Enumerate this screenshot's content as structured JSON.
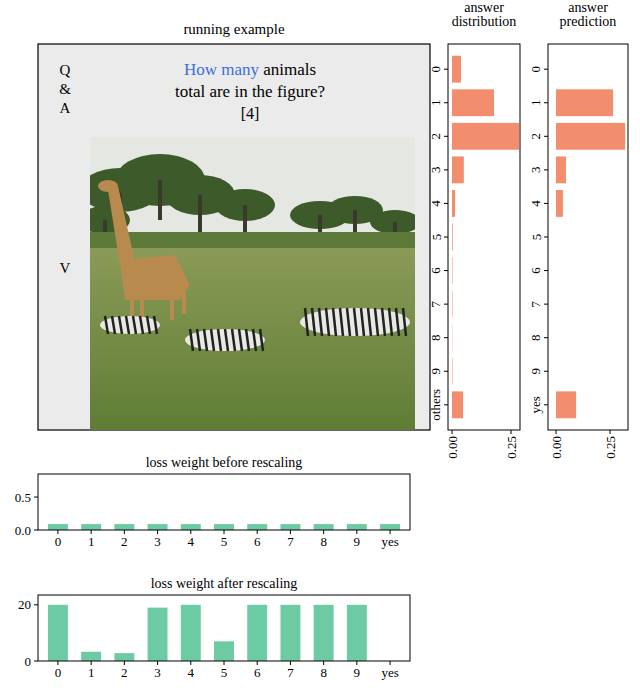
{
  "example": {
    "title": "running example",
    "q_labels": [
      "Q",
      "&",
      "A"
    ],
    "v_label": "V",
    "question_highlight": "How many",
    "question_line1_rest": " animals",
    "question_line2": "total are in the figure?",
    "answer": "[4]"
  },
  "chart_data": [
    {
      "type": "bar",
      "orientation": "horizontal",
      "title": "answer distribution",
      "categories": [
        "0",
        "1",
        "2",
        "3",
        "4",
        "5",
        "6",
        "7",
        "8",
        "9",
        "others"
      ],
      "values": [
        0.038,
        0.178,
        0.284,
        0.05,
        0.013,
        0.003,
        0.002,
        0.002,
        0.001,
        0.002,
        0.047
      ],
      "color": "#f28e6e",
      "xlim": [
        -0.017,
        0.288
      ],
      "xticks": [
        {
          "value": 0,
          "label": "0.00"
        },
        {
          "value": 0.25,
          "label": "0.25"
        }
      ]
    },
    {
      "type": "bar",
      "orientation": "horizontal",
      "title": "answer prediction",
      "categories": [
        "0",
        "1",
        "2",
        "3",
        "4",
        "5",
        "6",
        "7",
        "8",
        "9",
        "yes"
      ],
      "values": [
        0,
        0.264,
        0.32,
        0.046,
        0.032,
        0,
        0,
        0,
        0,
        0,
        0.093
      ],
      "color": "#f28e6e",
      "xlim": [
        -0.037,
        0.333
      ],
      "xticks": [
        {
          "value": 0,
          "label": "0.00"
        },
        {
          "value": 0.25,
          "label": "0.25"
        }
      ]
    },
    {
      "type": "bar",
      "title": "loss weight before rescaling",
      "categories": [
        "0",
        "1",
        "2",
        "3",
        "4",
        "5",
        "6",
        "7",
        "8",
        "9",
        "yes"
      ],
      "values": [
        0.09,
        0.09,
        0.09,
        0.09,
        0.09,
        0.09,
        0.09,
        0.09,
        0.09,
        0.09,
        0.09
      ],
      "color": "#6dcba4",
      "ylim": [
        0,
        0.85
      ],
      "yticks": [
        {
          "value": 0,
          "label": "0.0"
        },
        {
          "value": 0.5,
          "label": "0.5"
        }
      ]
    },
    {
      "type": "bar",
      "title": "loss weight after rescaling",
      "categories": [
        "0",
        "1",
        "2",
        "3",
        "4",
        "5",
        "6",
        "7",
        "8",
        "9",
        "yes"
      ],
      "values": [
        20,
        3.3,
        2.8,
        19,
        20,
        7,
        20,
        20,
        20,
        20,
        0
      ],
      "color": "#6dcba4",
      "ylim": [
        0,
        23.5
      ],
      "yticks": [
        0,
        20
      ]
    }
  ]
}
